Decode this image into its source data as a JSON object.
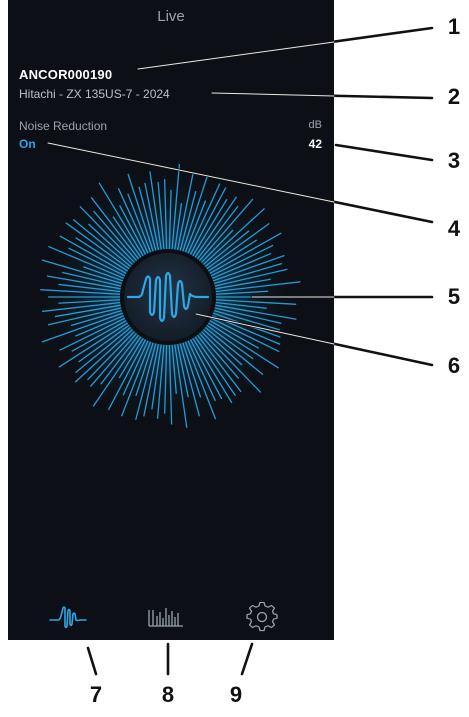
{
  "screen": {
    "title": "Live"
  },
  "machine": {
    "id": "ANCOR000190",
    "model": "Hitachi - ZX 135US-7 - 2024"
  },
  "noise_reduction": {
    "label": "Noise Reduction",
    "value": "On"
  },
  "decibel": {
    "label": "dB",
    "value": "42"
  },
  "visualizer": {
    "center_icon": "waveform-icon",
    "accent_color": "#29a9e8"
  },
  "tabbar": {
    "tabs": [
      {
        "icon": "waveform-icon",
        "active": true
      },
      {
        "icon": "bar-chart-icon",
        "active": false
      },
      {
        "icon": "gear-icon",
        "active": false
      }
    ]
  },
  "callouts": [
    "1",
    "2",
    "3",
    "4",
    "5",
    "6",
    "7",
    "8",
    "9"
  ],
  "colors": {
    "background": "#0c1016",
    "accent": "#29a9e8",
    "text_primary": "#ffffff",
    "text_secondary": "#9aa3ad"
  }
}
